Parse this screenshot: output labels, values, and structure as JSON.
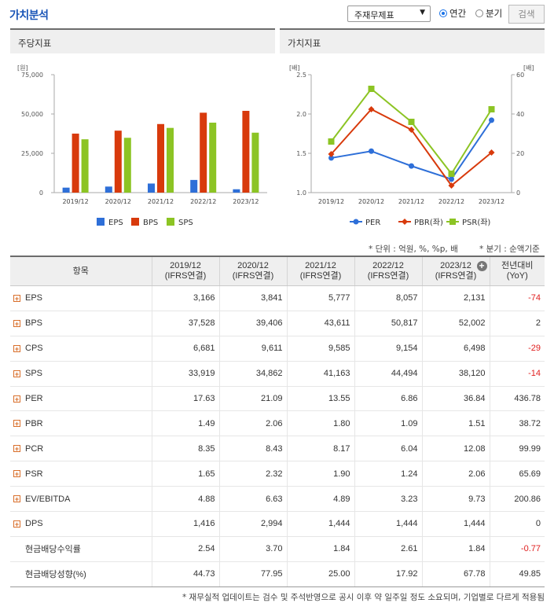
{
  "header": {
    "title": "가치분석",
    "report_select": "주재무제표",
    "radio_annual": "연간",
    "radio_quarter": "분기",
    "search_label": "검색"
  },
  "left_panel": {
    "title": "주당지표",
    "chart_data": {
      "type": "bar",
      "ylabel": "[원]",
      "ylim": [
        0,
        75000
      ],
      "yticks": [
        "75,000",
        "50,000",
        "25,000",
        "0"
      ],
      "categories": [
        "2019/12",
        "2020/12",
        "2021/12",
        "2022/12",
        "2023/12"
      ],
      "series": [
        {
          "name": "EPS",
          "color": "#2e6fd8",
          "values": [
            3166,
            3841,
            5777,
            8057,
            2131
          ]
        },
        {
          "name": "BPS",
          "color": "#d83a0c",
          "values": [
            37528,
            39406,
            43611,
            50817,
            52002
          ]
        },
        {
          "name": "SPS",
          "color": "#8cc424",
          "values": [
            33919,
            34862,
            41163,
            44494,
            38120
          ]
        }
      ]
    }
  },
  "right_panel": {
    "title": "가치지표",
    "chart_data": {
      "type": "line",
      "left_axis_label": "[배]",
      "right_axis_label": "[배]",
      "left_ylim": [
        1.0,
        2.5
      ],
      "left_yticks": [
        "2.5",
        "2.0",
        "1.5",
        "1.0"
      ],
      "right_ylim": [
        0,
        60
      ],
      "right_yticks": [
        "60",
        "40",
        "20",
        "0"
      ],
      "categories": [
        "2019/12",
        "2020/12",
        "2021/12",
        "2022/12",
        "2023/12"
      ],
      "series": [
        {
          "name": "PER",
          "axis": "right",
          "color": "#2e6fd8",
          "marker": "circle",
          "values": [
            17.63,
            21.09,
            13.55,
            6.86,
            36.84
          ]
        },
        {
          "name": "PBR(좌)",
          "axis": "left",
          "color": "#d83a0c",
          "marker": "diamond",
          "values": [
            1.49,
            2.06,
            1.8,
            1.09,
            1.51
          ]
        },
        {
          "name": "PSR(좌)",
          "axis": "left",
          "color": "#8cc424",
          "marker": "square",
          "values": [
            1.65,
            2.32,
            1.9,
            1.24,
            2.06
          ]
        }
      ]
    }
  },
  "notes": {
    "units": "* 단위 : 억원, %, %p, 배",
    "quarter_basis": "* 분기 : 순액기준",
    "footnote": "* 재무실적 업데이트는 검수 및 주석반영으로 공시 이후 약 일주일 정도 소요되며, 기업별로 다르게 적용됨"
  },
  "table": {
    "col_item": "항목",
    "columns": [
      {
        "year": "2019/12",
        "basis": "(IFRS연결)"
      },
      {
        "year": "2020/12",
        "basis": "(IFRS연결)"
      },
      {
        "year": "2021/12",
        "basis": "(IFRS연결)"
      },
      {
        "year": "2022/12",
        "basis": "(IFRS연결)"
      },
      {
        "year": "2023/12",
        "basis": "(IFRS연결)"
      }
    ],
    "col_yoy": "전년대비",
    "col_yoy_sub": "(YoY)",
    "rows": [
      {
        "label": "EPS",
        "expand": true,
        "values": [
          "3,166",
          "3,841",
          "5,777",
          "8,057",
          "2,131"
        ],
        "yoy": "-74",
        "neg": true
      },
      {
        "label": "BPS",
        "expand": true,
        "values": [
          "37,528",
          "39,406",
          "43,611",
          "50,817",
          "52,002"
        ],
        "yoy": "2",
        "neg": false
      },
      {
        "label": "CPS",
        "expand": true,
        "values": [
          "6,681",
          "9,611",
          "9,585",
          "9,154",
          "6,498"
        ],
        "yoy": "-29",
        "neg": true
      },
      {
        "label": "SPS",
        "expand": true,
        "values": [
          "33,919",
          "34,862",
          "41,163",
          "44,494",
          "38,120"
        ],
        "yoy": "-14",
        "neg": true
      },
      {
        "label": "PER",
        "expand": true,
        "values": [
          "17.63",
          "21.09",
          "13.55",
          "6.86",
          "36.84"
        ],
        "yoy": "436.78",
        "neg": false
      },
      {
        "label": "PBR",
        "expand": true,
        "values": [
          "1.49",
          "2.06",
          "1.80",
          "1.09",
          "1.51"
        ],
        "yoy": "38.72",
        "neg": false
      },
      {
        "label": "PCR",
        "expand": true,
        "values": [
          "8.35",
          "8.43",
          "8.17",
          "6.04",
          "12.08"
        ],
        "yoy": "99.99",
        "neg": false
      },
      {
        "label": "PSR",
        "expand": true,
        "values": [
          "1.65",
          "2.32",
          "1.90",
          "1.24",
          "2.06"
        ],
        "yoy": "65.69",
        "neg": false
      },
      {
        "label": "EV/EBITDA",
        "expand": true,
        "values": [
          "4.88",
          "6.63",
          "4.89",
          "3.23",
          "9.73"
        ],
        "yoy": "200.86",
        "neg": false
      },
      {
        "label": "DPS",
        "expand": true,
        "values": [
          "1,416",
          "2,994",
          "1,444",
          "1,444",
          "1,444"
        ],
        "yoy": "0",
        "neg": false
      },
      {
        "label": "현금배당수익률",
        "expand": false,
        "values": [
          "2.54",
          "3.70",
          "1.84",
          "2.61",
          "1.84"
        ],
        "yoy": "-0.77",
        "neg": true
      },
      {
        "label": "현금배당성향(%)",
        "expand": false,
        "values": [
          "44.73",
          "77.95",
          "25.00",
          "17.92",
          "67.78"
        ],
        "yoy": "49.85",
        "neg": false
      }
    ]
  }
}
